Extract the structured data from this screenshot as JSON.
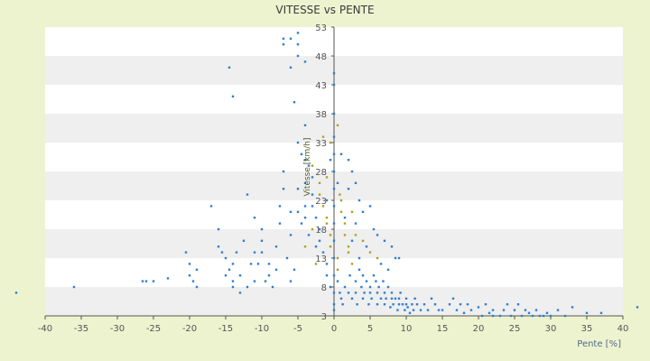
{
  "chart_data": {
    "type": "scatter",
    "title": "VITESSE vs PENTE",
    "xlabel": "Pente [%]",
    "ylabel": "Vitesse [km/h]",
    "xlim": [
      -40,
      40
    ],
    "ylim": [
      3,
      53
    ],
    "x_ticks": [
      -40,
      -35,
      -30,
      -25,
      -20,
      -15,
      -10,
      -5,
      0,
      5,
      10,
      15,
      20,
      25,
      30,
      35,
      40
    ],
    "y_ticks": [
      3,
      8,
      13,
      18,
      23,
      28,
      33,
      38,
      43,
      48,
      53
    ],
    "x_tick_labels": [
      "-40",
      "-35",
      "-30",
      "-25",
      "-20",
      "-15",
      "-10",
      "-5",
      "0",
      "5",
      "10",
      "15",
      "20",
      "25",
      "30",
      "35",
      "40"
    ],
    "y_tick_labels": [
      "3",
      "8",
      "13",
      "18",
      "23",
      "28",
      "33",
      "38",
      "43",
      "48",
      "53"
    ],
    "grid": "horizontal bands",
    "legend": "none",
    "colors": {
      "background": "#eef3cf",
      "plot_band_light": "#ffffff",
      "plot_band_dark": "#efefef",
      "series_primary": "#2f7fd1",
      "series_secondary": "#a9a322",
      "axis": "#555555"
    },
    "series": [
      {
        "color": "#2f7fd1",
        "points": [
          [
            -44,
            7
          ],
          [
            -36,
            8
          ],
          [
            -26.5,
            9
          ],
          [
            -26,
            9
          ],
          [
            -25,
            9
          ],
          [
            -23,
            9.5
          ],
          [
            -20,
            12
          ],
          [
            -20,
            10
          ],
          [
            -19,
            8
          ],
          [
            -19.5,
            9
          ],
          [
            -20.5,
            14
          ],
          [
            -19,
            11
          ],
          [
            -17,
            22
          ],
          [
            -16,
            18
          ],
          [
            -15.5,
            14
          ],
          [
            -15,
            13
          ],
          [
            -14.5,
            11
          ],
          [
            -14,
            9
          ],
          [
            -14,
            12
          ],
          [
            -13,
            10
          ],
          [
            -12,
            8
          ],
          [
            -13.5,
            14
          ],
          [
            -12.5,
            16
          ],
          [
            -11.5,
            12
          ],
          [
            -11,
            9
          ],
          [
            -15,
            10
          ],
          [
            -16,
            15
          ],
          [
            -14,
            8
          ],
          [
            -13,
            7
          ],
          [
            -14.5,
            46
          ],
          [
            -14,
            41
          ],
          [
            -12,
            24
          ],
          [
            -11,
            20
          ],
          [
            -10,
            18
          ],
          [
            -10,
            16
          ],
          [
            -10,
            14
          ],
          [
            -9,
            12
          ],
          [
            -9,
            10
          ],
          [
            -8.5,
            8
          ],
          [
            -8,
            11
          ],
          [
            -8,
            15
          ],
          [
            -7.5,
            19
          ],
          [
            -7.5,
            22
          ],
          [
            -7,
            25
          ],
          [
            -7,
            28
          ],
          [
            -6.5,
            13
          ],
          [
            -6,
            17
          ],
          [
            -6,
            21
          ],
          [
            -6,
            9
          ],
          [
            -5.5,
            11
          ],
          [
            -9.5,
            9
          ],
          [
            -10.5,
            12
          ],
          [
            -11,
            14
          ],
          [
            -7,
            50
          ],
          [
            -7,
            51
          ],
          [
            -6,
            51
          ],
          [
            -5,
            52
          ],
          [
            -5,
            50
          ],
          [
            -5,
            48
          ],
          [
            -4,
            47
          ],
          [
            -6,
            46
          ],
          [
            -5.5,
            40
          ],
          [
            -5,
            33
          ],
          [
            -4.5,
            31
          ],
          [
            -4,
            36
          ],
          [
            -4,
            30
          ],
          [
            -3.5,
            29
          ],
          [
            -3,
            27
          ],
          [
            -3,
            24
          ],
          [
            -3,
            22
          ],
          [
            -2.5,
            20
          ],
          [
            -2,
            18
          ],
          [
            -2,
            16
          ],
          [
            -1.5,
            14
          ],
          [
            -1,
            12
          ],
          [
            -1,
            10
          ],
          [
            -0.5,
            8
          ],
          [
            -4,
            26
          ],
          [
            -4,
            22
          ],
          [
            -4,
            20
          ],
          [
            -5,
            25
          ],
          [
            -5,
            21
          ],
          [
            -4.5,
            19
          ],
          [
            -3.5,
            17
          ],
          [
            -2.5,
            15
          ],
          [
            0,
            45
          ],
          [
            0,
            43
          ],
          [
            0,
            38
          ],
          [
            0,
            34
          ],
          [
            0,
            31
          ],
          [
            0,
            28
          ],
          [
            0,
            25
          ],
          [
            0,
            22
          ],
          [
            0,
            19
          ],
          [
            0,
            16
          ],
          [
            0,
            13
          ],
          [
            0,
            10
          ],
          [
            0,
            7
          ],
          [
            0,
            5
          ],
          [
            0,
            4
          ],
          [
            -0.5,
            30
          ],
          [
            0.5,
            26
          ],
          [
            -1,
            23
          ],
          [
            0.5,
            9
          ],
          [
            0.8,
            7
          ],
          [
            1,
            6
          ],
          [
            1.2,
            5
          ],
          [
            1.5,
            8
          ],
          [
            2,
            7
          ],
          [
            2.2,
            10
          ],
          [
            2.5,
            6
          ],
          [
            3,
            9
          ],
          [
            3,
            7
          ],
          [
            3.2,
            5
          ],
          [
            3.5,
            11
          ],
          [
            3.8,
            8
          ],
          [
            4,
            6
          ],
          [
            4,
            10
          ],
          [
            4.2,
            7
          ],
          [
            4.5,
            9
          ],
          [
            4.8,
            5
          ],
          [
            5,
            8
          ],
          [
            5,
            7
          ],
          [
            5.2,
            6
          ],
          [
            5.5,
            10
          ],
          [
            5.8,
            9
          ],
          [
            6,
            7
          ],
          [
            6,
            5
          ],
          [
            6.2,
            8
          ],
          [
            6.5,
            6
          ],
          [
            6.8,
            9
          ],
          [
            7,
            7
          ],
          [
            7,
            5
          ],
          [
            7.2,
            6
          ],
          [
            7.5,
            8
          ],
          [
            7.8,
            4.5
          ],
          [
            8,
            6
          ],
          [
            8,
            7
          ],
          [
            8.2,
            5
          ],
          [
            8.5,
            6
          ],
          [
            8.8,
            4
          ],
          [
            9,
            5
          ],
          [
            9,
            6
          ],
          [
            9.2,
            7
          ],
          [
            9.5,
            5
          ],
          [
            9.8,
            4
          ],
          [
            10,
            5
          ],
          [
            10,
            6
          ],
          [
            10.2,
            4.5
          ],
          [
            10.5,
            3.5
          ],
          [
            10.8,
            5
          ],
          [
            11,
            4
          ],
          [
            11.2,
            6
          ],
          [
            11.5,
            5
          ],
          [
            12,
            4
          ],
          [
            12.5,
            5
          ],
          [
            13,
            4
          ],
          [
            13.5,
            6
          ],
          [
            14,
            5
          ],
          [
            14.5,
            4
          ],
          [
            1,
            31
          ],
          [
            2,
            30
          ],
          [
            3,
            26
          ],
          [
            3.5,
            23
          ],
          [
            4,
            21
          ],
          [
            5,
            22
          ],
          [
            5.5,
            18
          ],
          [
            6,
            17
          ],
          [
            7,
            16
          ],
          [
            8,
            15
          ],
          [
            2.5,
            28
          ],
          [
            2,
            25
          ],
          [
            3,
            19
          ],
          [
            4.5,
            15
          ],
          [
            6.5,
            12
          ],
          [
            7.5,
            11
          ],
          [
            8.5,
            13
          ],
          [
            9,
            13
          ],
          [
            1.5,
            20
          ],
          [
            2.5,
            16
          ],
          [
            3.5,
            13
          ],
          [
            15,
            4
          ],
          [
            16,
            5
          ],
          [
            16.5,
            6
          ],
          [
            17,
            4
          ],
          [
            17.5,
            5
          ],
          [
            18,
            3.5
          ],
          [
            18.5,
            5
          ],
          [
            19,
            4
          ],
          [
            20,
            4.5
          ],
          [
            20.5,
            3
          ],
          [
            21,
            5
          ],
          [
            21.5,
            3.5
          ],
          [
            22,
            4
          ],
          [
            22,
            3
          ],
          [
            23,
            3
          ],
          [
            23.5,
            4
          ],
          [
            24,
            5
          ],
          [
            24.5,
            3
          ],
          [
            25,
            4
          ],
          [
            25.5,
            5
          ],
          [
            26,
            3
          ],
          [
            26.5,
            4
          ],
          [
            27,
            3.5
          ],
          [
            27.5,
            3
          ],
          [
            28,
            4
          ],
          [
            28.5,
            3
          ],
          [
            29,
            3
          ],
          [
            29.5,
            3.5
          ],
          [
            30,
            3
          ],
          [
            31,
            4
          ],
          [
            32,
            3
          ],
          [
            33,
            4.5
          ],
          [
            35,
            3.5
          ],
          [
            37,
            3.5
          ],
          [
            42,
            4.5
          ]
        ]
      },
      {
        "color": "#a9a322",
        "points": [
          [
            -3,
            29
          ],
          [
            -2,
            26
          ],
          [
            -2,
            24
          ],
          [
            -1.5,
            22
          ],
          [
            -1,
            20
          ],
          [
            -1,
            19
          ],
          [
            -0.5,
            17
          ],
          [
            -0.5,
            15
          ],
          [
            1,
            23
          ],
          [
            1,
            21
          ],
          [
            1.5,
            19
          ],
          [
            1.5,
            17
          ],
          [
            2,
            15
          ],
          [
            2,
            14
          ],
          [
            2.5,
            12
          ],
          [
            0.5,
            13
          ],
          [
            0.5,
            11
          ],
          [
            -2.5,
            12
          ],
          [
            -3,
            18
          ],
          [
            -4,
            15
          ],
          [
            -0.5,
            33
          ],
          [
            0.5,
            36
          ],
          [
            -1.5,
            34
          ],
          [
            2.5,
            21
          ],
          [
            3,
            17
          ],
          [
            4,
            16
          ],
          [
            5,
            14
          ],
          [
            6,
            13
          ],
          [
            -1,
            27
          ],
          [
            0.8,
            24
          ]
        ]
      }
    ]
  }
}
